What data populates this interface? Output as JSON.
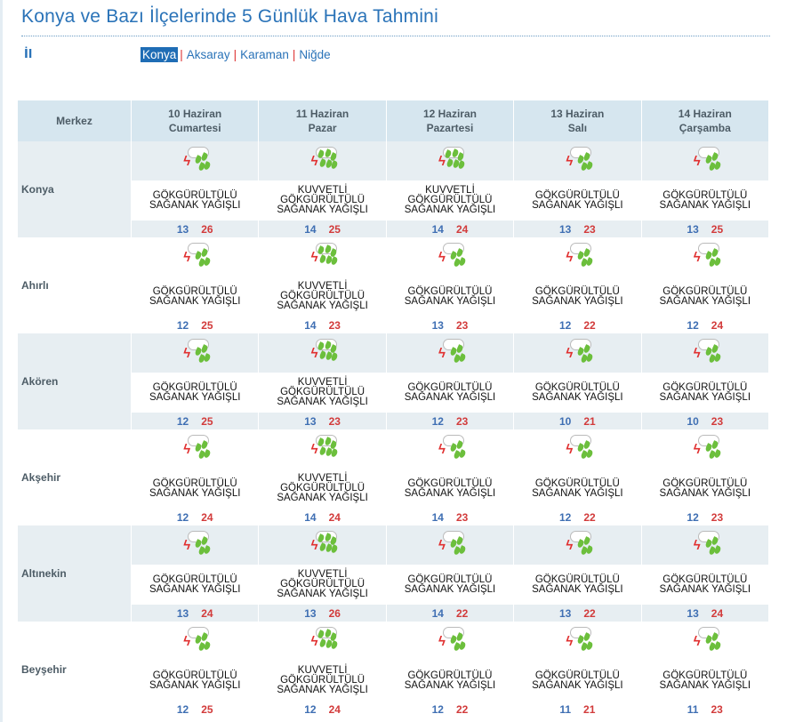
{
  "title": "Konya ve Bazı İlçelerinde 5 Günlük Hava Tahmini",
  "il_label": "İl",
  "provinces": [
    {
      "label": "Konya",
      "active": true
    },
    {
      "label": "Aksaray"
    },
    {
      "label": "Karaman"
    },
    {
      "label": "Niğde"
    }
  ],
  "header": {
    "first": "Merkez",
    "days": [
      {
        "date": "10 Haziran",
        "day": "Cumartesi"
      },
      {
        "date": "11 Haziran",
        "day": "Pazar"
      },
      {
        "date": "12 Haziran",
        "day": "Pazartesi"
      },
      {
        "date": "13 Haziran",
        "day": "Salı"
      },
      {
        "date": "14 Haziran",
        "day": "Çarşamba"
      }
    ]
  },
  "conditions": {
    "G": {
      "icon": "thunderstorm-rain-icon",
      "lines": [
        "GÖKGÜRÜLTÜLÜ",
        "SAĞANAK YAĞIŞLI"
      ]
    },
    "K": {
      "icon": "heavy-thunderstorm-rain-icon",
      "lines": [
        "KUVVETLİ",
        "GÖKGÜRÜLTÜLÜ",
        "SAĞANAK YAĞIŞLI"
      ]
    }
  },
  "colors": {
    "min": "#3f6fb3",
    "max": "#d23b3b",
    "accent": "#2a73b8"
  },
  "rows": [
    {
      "name": "Konya",
      "days": [
        {
          "c": "G",
          "min": "13",
          "max": "26"
        },
        {
          "c": "K",
          "min": "14",
          "max": "25"
        },
        {
          "c": "K",
          "min": "14",
          "max": "24"
        },
        {
          "c": "G",
          "min": "13",
          "max": "23"
        },
        {
          "c": "G",
          "min": "13",
          "max": "25"
        }
      ]
    },
    {
      "name": "Ahırlı",
      "days": [
        {
          "c": "G",
          "min": "12",
          "max": "25"
        },
        {
          "c": "K",
          "min": "14",
          "max": "23"
        },
        {
          "c": "G",
          "min": "13",
          "max": "23"
        },
        {
          "c": "G",
          "min": "12",
          "max": "22"
        },
        {
          "c": "G",
          "min": "12",
          "max": "24"
        }
      ]
    },
    {
      "name": "Akören",
      "days": [
        {
          "c": "G",
          "min": "12",
          "max": "25"
        },
        {
          "c": "K",
          "min": "13",
          "max": "23"
        },
        {
          "c": "G",
          "min": "12",
          "max": "23"
        },
        {
          "c": "G",
          "min": "10",
          "max": "21"
        },
        {
          "c": "G",
          "min": "10",
          "max": "23"
        }
      ]
    },
    {
      "name": "Akşehir",
      "days": [
        {
          "c": "G",
          "min": "12",
          "max": "24"
        },
        {
          "c": "K",
          "min": "14",
          "max": "24"
        },
        {
          "c": "G",
          "min": "14",
          "max": "23"
        },
        {
          "c": "G",
          "min": "12",
          "max": "22"
        },
        {
          "c": "G",
          "min": "12",
          "max": "23"
        }
      ]
    },
    {
      "name": "Altınekin",
      "days": [
        {
          "c": "G",
          "min": "13",
          "max": "24"
        },
        {
          "c": "K",
          "min": "13",
          "max": "26"
        },
        {
          "c": "G",
          "min": "14",
          "max": "22"
        },
        {
          "c": "G",
          "min": "13",
          "max": "22"
        },
        {
          "c": "G",
          "min": "13",
          "max": "24"
        }
      ]
    },
    {
      "name": "Beyşehir",
      "days": [
        {
          "c": "G",
          "min": "12",
          "max": "25"
        },
        {
          "c": "K",
          "min": "12",
          "max": "24"
        },
        {
          "c": "G",
          "min": "12",
          "max": "22"
        },
        {
          "c": "G",
          "min": "11",
          "max": "21"
        },
        {
          "c": "G",
          "min": "11",
          "max": "23"
        }
      ]
    }
  ]
}
